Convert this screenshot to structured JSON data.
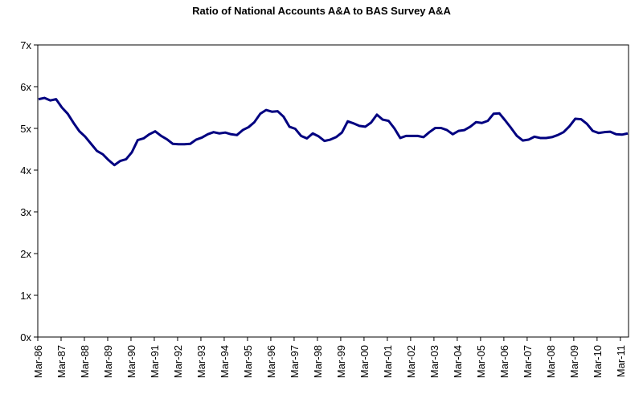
{
  "chart_data": {
    "type": "line",
    "title": "Ratio of National Accounts A&A to BAS Survey A&A",
    "xlabel": "",
    "ylabel": "",
    "ylim": [
      0,
      7
    ],
    "y_ticks": [
      "0x",
      "1x",
      "2x",
      "3x",
      "4x",
      "5x",
      "6x",
      "7x"
    ],
    "x_tick_labels": [
      "Mar-86",
      "Mar-87",
      "Mar-88",
      "Mar-89",
      "Mar-90",
      "Mar-91",
      "Mar-92",
      "Mar-93",
      "Mar-94",
      "Mar-95",
      "Mar-96",
      "Mar-97",
      "Mar-98",
      "Mar-99",
      "Mar-00",
      "Mar-01",
      "Mar-02",
      "Mar-03",
      "Mar-04",
      "Mar-05",
      "Mar-06",
      "Mar-07",
      "Mar-08",
      "Mar-09",
      "Mar-10",
      "Mar-11"
    ],
    "grid": false,
    "legend": "none",
    "series_color": "#000080",
    "series": [
      {
        "values": [
          5.7,
          5.73,
          5.67,
          5.7,
          5.5,
          5.35,
          5.13,
          4.93,
          4.8,
          4.63,
          4.46,
          4.38,
          4.24,
          4.12,
          4.22,
          4.26,
          4.43,
          4.72,
          4.76,
          4.86,
          4.93,
          4.82,
          4.74,
          4.63,
          4.62,
          4.62,
          4.63,
          4.73,
          4.78,
          4.86,
          4.91,
          4.88,
          4.9,
          4.86,
          4.84,
          4.96,
          5.03,
          5.15,
          5.35,
          5.44,
          5.4,
          5.41,
          5.28,
          5.04,
          4.99,
          4.82,
          4.76,
          4.88,
          4.81,
          4.7,
          4.73,
          4.79,
          4.9,
          5.17,
          5.12,
          5.06,
          5.04,
          5.14,
          5.33,
          5.21,
          5.18,
          5.0,
          4.77,
          4.82,
          4.82,
          4.82,
          4.79,
          4.91,
          5.01,
          5.01,
          4.96,
          4.86,
          4.94,
          4.96,
          5.04,
          5.15,
          5.13,
          5.18,
          5.35,
          5.36,
          5.19,
          5.01,
          4.82,
          4.71,
          4.73,
          4.8,
          4.77,
          4.77,
          4.79,
          4.84,
          4.91,
          5.05,
          5.23,
          5.22,
          5.11,
          4.94,
          4.89,
          4.91,
          4.92,
          4.86,
          4.85,
          4.88
        ]
      }
    ]
  }
}
